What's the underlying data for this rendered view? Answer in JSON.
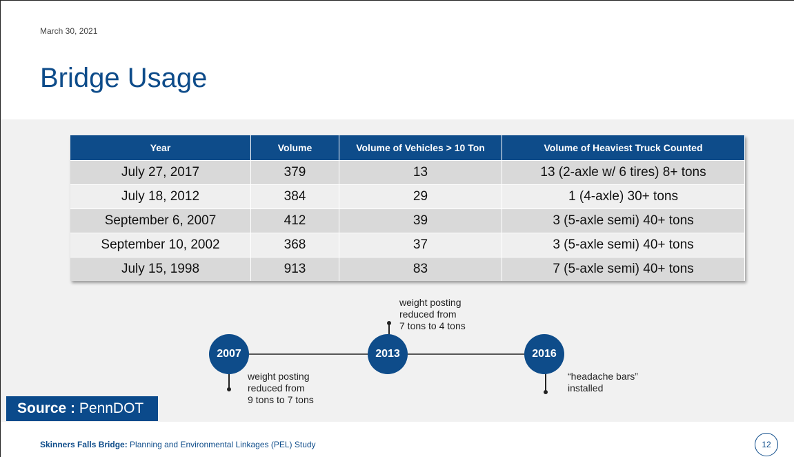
{
  "header": {
    "date": "March 30, 2021",
    "title": "Bridge Usage"
  },
  "table": {
    "columns": [
      "Year",
      "Volume",
      "Volume of Vehicles > 10 Ton",
      "Volume of Heaviest Truck Counted"
    ],
    "rows": [
      [
        "July 27, 2017",
        "379",
        "13",
        "13 (2-axle w/ 6 tires) 8+ tons"
      ],
      [
        "July 18, 2012",
        "384",
        "29",
        "1 (4-axle) 30+ tons"
      ],
      [
        "September 6, 2007",
        "412",
        "39",
        "3 (5-axle semi) 40+ tons"
      ],
      [
        "September 10, 2002",
        "368",
        "37",
        "3 (5-axle semi) 40+ tons"
      ],
      [
        "July 15, 1998",
        "913",
        "83",
        "7 (5-axle semi) 40+ tons"
      ]
    ]
  },
  "timeline": [
    {
      "year": "2007",
      "note": [
        "weight posting",
        "reduced from",
        "9 tons to 7 tons"
      ]
    },
    {
      "year": "2013",
      "note": [
        "weight posting",
        "reduced from",
        "7 tons to 4 tons"
      ]
    },
    {
      "year": "2016",
      "note": [
        "“headache bars”",
        "installed"
      ]
    }
  ],
  "source": {
    "label": "Source",
    "separator": ":",
    "value": "PennDOT"
  },
  "footer": {
    "project": "Skinners Falls Bridge:",
    "study": "Planning and Environmental Linkages (PEL) Study",
    "page": "12"
  }
}
